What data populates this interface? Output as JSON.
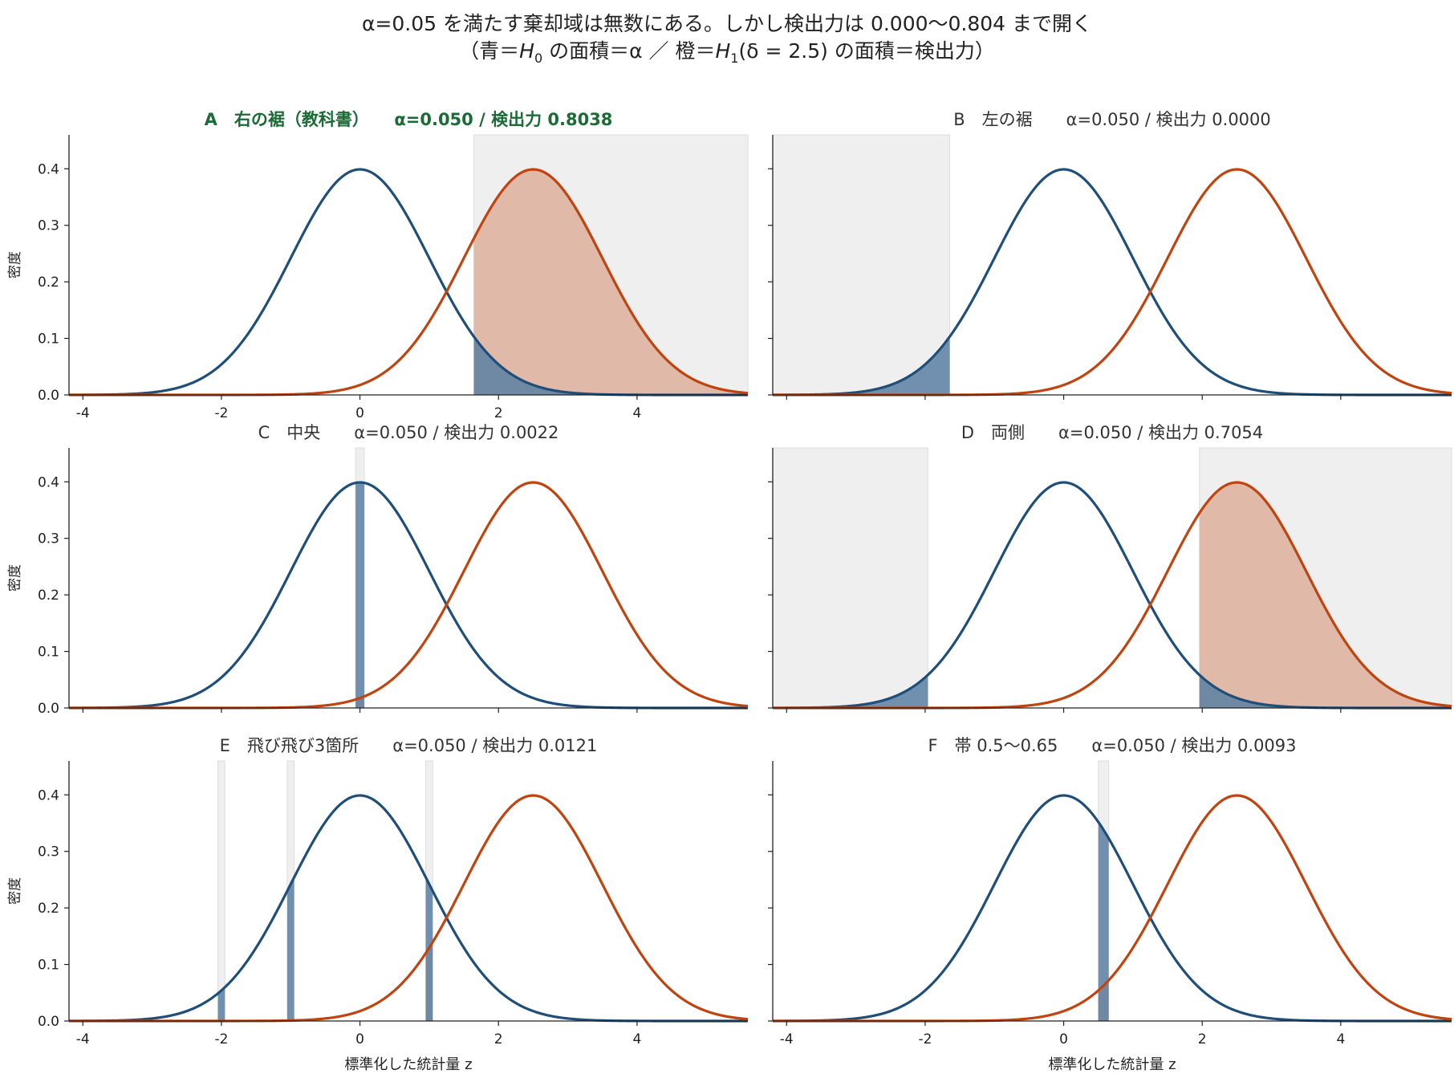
{
  "figure": {
    "title_line1": "α=0.05 を満たす棄却域は無数にある。しかし検出力は 0.000〜0.804 まで開く",
    "title_line2": {
      "open": "（青＝",
      "h0": "H",
      "h0_sub": "0",
      "mid1": " の面積＝α ／ 橙＝",
      "h1": "H",
      "h1_sub": "1",
      "delta": "(δ = 2.5)",
      "mid2": " の面積＝検出力）"
    }
  },
  "colors": {
    "h0_line": "#1f4e79",
    "h0_fill": "#5b7fa3",
    "h1_line": "#c0440f",
    "h1_fill": "#deb5a4",
    "region_bg": "#efefef",
    "highlight_title": "#1b6b35",
    "normal_title": "#333333"
  },
  "chart_data": [
    {
      "type": "line",
      "panel": "A",
      "title": "A　右の裾（教科書）　　α=0.050 / 検出力 0.8038",
      "highlight": true,
      "ylabel": "密度",
      "xlabel": "",
      "xlim": [
        -4.2,
        5.6
      ],
      "ylim": [
        0,
        0.46
      ],
      "yticks": [
        "0.0",
        "0.1",
        "0.2",
        "0.3",
        "0.4"
      ],
      "xticks": [
        "-4",
        "-2",
        "0",
        "2",
        "4"
      ],
      "series": [
        {
          "name": "H0",
          "mean": 0,
          "sd": 1
        },
        {
          "name": "H1",
          "mean": 2.5,
          "sd": 1
        }
      ],
      "rejection_regions": [
        [
          1.645,
          5.6
        ]
      ],
      "alpha": 0.05,
      "power": 0.8038
    },
    {
      "type": "line",
      "panel": "B",
      "title": "B　左の裾　　α=0.050 / 検出力 0.0000",
      "highlight": false,
      "ylabel": "",
      "xlabel": "",
      "xlim": [
        -4.2,
        5.6
      ],
      "ylim": [
        0,
        0.46
      ],
      "yticks": [
        "",
        "",
        "",
        "",
        ""
      ],
      "xticks": [
        "",
        "",
        "",
        "",
        ""
      ],
      "series": [
        {
          "name": "H0",
          "mean": 0,
          "sd": 1
        },
        {
          "name": "H1",
          "mean": 2.5,
          "sd": 1
        }
      ],
      "rejection_regions": [
        [
          -4.2,
          -1.645
        ]
      ],
      "alpha": 0.05,
      "power": 0.0
    },
    {
      "type": "line",
      "panel": "C",
      "title": "C　中央　　α=0.050 / 検出力 0.0022",
      "highlight": false,
      "ylabel": "密度",
      "xlabel": "",
      "xlim": [
        -4.2,
        5.6
      ],
      "ylim": [
        0,
        0.46
      ],
      "yticks": [
        "0.0",
        "0.1",
        "0.2",
        "0.3",
        "0.4"
      ],
      "xticks": [
        "",
        "",
        "",
        "",
        ""
      ],
      "series": [
        {
          "name": "H0",
          "mean": 0,
          "sd": 1
        },
        {
          "name": "H1",
          "mean": 2.5,
          "sd": 1
        }
      ],
      "rejection_regions": [
        [
          -0.063,
          0.063
        ]
      ],
      "alpha": 0.05,
      "power": 0.0022
    },
    {
      "type": "line",
      "panel": "D",
      "title": "D　両側　　α=0.050 / 検出力 0.7054",
      "highlight": false,
      "ylabel": "",
      "xlabel": "",
      "xlim": [
        -4.2,
        5.6
      ],
      "ylim": [
        0,
        0.46
      ],
      "yticks": [
        "",
        "",
        "",
        "",
        ""
      ],
      "xticks": [
        "",
        "",
        "",
        "",
        ""
      ],
      "series": [
        {
          "name": "H0",
          "mean": 0,
          "sd": 1
        },
        {
          "name": "H1",
          "mean": 2.5,
          "sd": 1
        }
      ],
      "rejection_regions": [
        [
          -4.2,
          -1.96
        ],
        [
          1.96,
          5.6
        ]
      ],
      "alpha": 0.05,
      "power": 0.7054
    },
    {
      "type": "line",
      "panel": "E",
      "title": "E　飛び飛び3箇所　　α=0.050 / 検出力 0.0121",
      "highlight": false,
      "ylabel": "密度",
      "xlabel": "標準化した統計量 z",
      "xlim": [
        -4.2,
        5.6
      ],
      "ylim": [
        0,
        0.46
      ],
      "yticks": [
        "0.0",
        "0.1",
        "0.2",
        "0.3",
        "0.4"
      ],
      "xticks": [
        "-4",
        "-2",
        "0",
        "2",
        "4"
      ],
      "series": [
        {
          "name": "H0",
          "mean": 0,
          "sd": 1
        },
        {
          "name": "H1",
          "mean": 2.5,
          "sd": 1
        }
      ],
      "rejection_regions": [
        [
          -2.05,
          -1.95
        ],
        [
          -1.05,
          -0.95
        ],
        [
          0.95,
          1.05
        ]
      ],
      "alpha": 0.05,
      "power": 0.0121
    },
    {
      "type": "line",
      "panel": "F",
      "title": "F　帯 0.5〜0.65　　α=0.050 / 検出力 0.0093",
      "highlight": false,
      "ylabel": "",
      "xlabel": "標準化した統計量 z",
      "xlim": [
        -4.2,
        5.6
      ],
      "ylim": [
        0,
        0.46
      ],
      "yticks": [
        "",
        "",
        "",
        "",
        ""
      ],
      "xticks": [
        "-4",
        "-2",
        "0",
        "2",
        "4"
      ],
      "series": [
        {
          "name": "H0",
          "mean": 0,
          "sd": 1
        },
        {
          "name": "H1",
          "mean": 2.5,
          "sd": 1
        }
      ],
      "rejection_regions": [
        [
          0.5,
          0.65
        ]
      ],
      "alpha": 0.05,
      "power": 0.0093
    }
  ]
}
